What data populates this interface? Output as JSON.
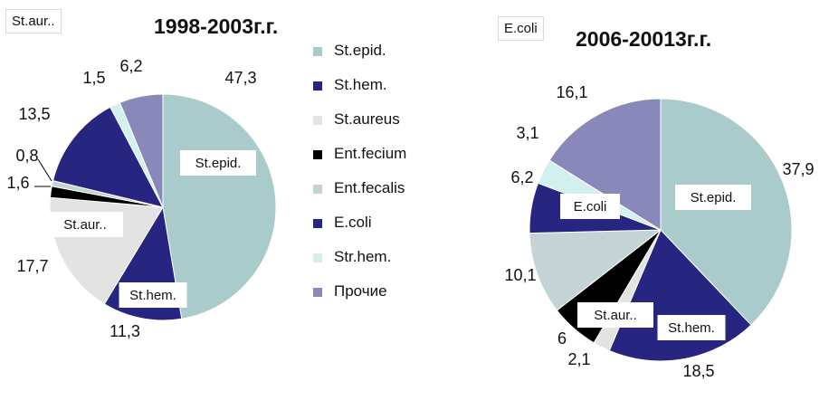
{
  "chart_data": [
    {
      "type": "pie",
      "title": "1998-2003г.г.",
      "tag": "St.aur..",
      "categories": [
        "St.epid.",
        "St.hem.",
        "St.aureus",
        "Ent.fecium",
        "Ent.fecalis",
        "E.coli",
        "Str.hem.",
        "Прочие"
      ],
      "values": [
        47.3,
        11.3,
        17.7,
        1.6,
        0.8,
        13.5,
        1.5,
        6.2
      ],
      "value_labels": [
        "47,3",
        "11,3",
        "17,7",
        "1,6",
        "0,8",
        "13,5",
        "1,5",
        "6,2"
      ],
      "slice_labels": [
        {
          "slice": 0,
          "text": "St.epid."
        },
        {
          "slice": 1,
          "text": "St.hem."
        },
        {
          "slice": 2,
          "text": "St.aur.."
        }
      ]
    },
    {
      "type": "pie",
      "title": "2006-20013г.г.",
      "tag": "E.coli",
      "categories": [
        "St.epid.",
        "St.hem.",
        "St.aureus",
        "Ent.fecium",
        "Ent.fecalis",
        "E.coli",
        "Str.hem.",
        "Прочие"
      ],
      "values": [
        37.9,
        18.5,
        2.1,
        6,
        10.1,
        6.2,
        3.1,
        16.1
      ],
      "value_labels": [
        "37,9",
        "18,5",
        "2,1",
        "6",
        "10,1",
        "6,2",
        "3,1",
        "16,1"
      ],
      "slice_labels": [
        {
          "slice": 0,
          "text": "St.epid."
        },
        {
          "slice": 1,
          "text": "St.hem."
        },
        {
          "slice": 2,
          "text": "St.aur.."
        },
        {
          "slice": 5,
          "text": "E.coli"
        }
      ]
    }
  ],
  "legend": {
    "placement": "center",
    "items": [
      {
        "label": "St.epid.",
        "color": "#a9cbcb"
      },
      {
        "label": "St.hem.",
        "color": "#262680"
      },
      {
        "label": "St.aureus",
        "color": "#e3e3e3"
      },
      {
        "label": "Ent.fecium",
        "color": "#000000"
      },
      {
        "label": "Ent.fecalis",
        "color": "#c3d3d6"
      },
      {
        "label": "E.coli",
        "color": "#262680"
      },
      {
        "label": "Str.hem.",
        "color": "#d3f0f0"
      },
      {
        "label": "Прочие",
        "color": "#8888bb"
      }
    ]
  }
}
